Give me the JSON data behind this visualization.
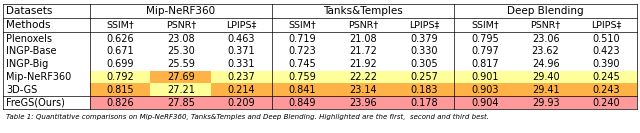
{
  "datasets": [
    "Mip-NeRF360",
    "Tanks&Temples",
    "Deep Blending"
  ],
  "metrics": [
    "SSIM†",
    "PSNR†",
    "LPIPS‡"
  ],
  "methods": [
    "Plenoxels",
    "INGP-Base",
    "INGP-Big",
    "Mip-NeRF360",
    "3D-GS",
    "FreGS(Ours)"
  ],
  "data": {
    "Mip-NeRF360": {
      "Plenoxels": [
        "0.626",
        "23.08",
        "0.463"
      ],
      "INGP-Base": [
        "0.671",
        "25.30",
        "0.371"
      ],
      "INGP-Big": [
        "0.699",
        "25.59",
        "0.331"
      ],
      "Mip-NeRF360": [
        "0.792",
        "27.69",
        "0.237"
      ],
      "3D-GS": [
        "0.815",
        "27.21",
        "0.214"
      ],
      "FreGS(Ours)": [
        "0.826",
        "27.85",
        "0.209"
      ]
    },
    "Tanks&Temples": {
      "Plenoxels": [
        "0.719",
        "21.08",
        "0.379"
      ],
      "INGP-Base": [
        "0.723",
        "21.72",
        "0.330"
      ],
      "INGP-Big": [
        "0.745",
        "21.92",
        "0.305"
      ],
      "Mip-NeRF360": [
        "0.759",
        "22.22",
        "0.257"
      ],
      "3D-GS": [
        "0.841",
        "23.14",
        "0.183"
      ],
      "FreGS(Ours)": [
        "0.849",
        "23.96",
        "0.178"
      ]
    },
    "Deep Blending": {
      "Plenoxels": [
        "0.795",
        "23.06",
        "0.510"
      ],
      "INGP-Base": [
        "0.797",
        "23.62",
        "0.423"
      ],
      "INGP-Big": [
        "0.817",
        "24.96",
        "0.390"
      ],
      "Mip-NeRF360": [
        "0.901",
        "29.40",
        "0.245"
      ],
      "3D-GS": [
        "0.903",
        "29.41",
        "0.243"
      ],
      "FreGS(Ours)": [
        "0.904",
        "29.93",
        "0.240"
      ]
    }
  },
  "rank1_color": "#FF9999",
  "rank2_color": "#FFB347",
  "rank3_color": "#FFFF99",
  "caption": "Table 1: Quantitative comparisons on Mip-NeRF360, Tanks&Temples and Deep Blending. Highlighted are the first,  second and third best.",
  "fig_width": 6.4,
  "fig_height": 1.33,
  "dpi": 100
}
